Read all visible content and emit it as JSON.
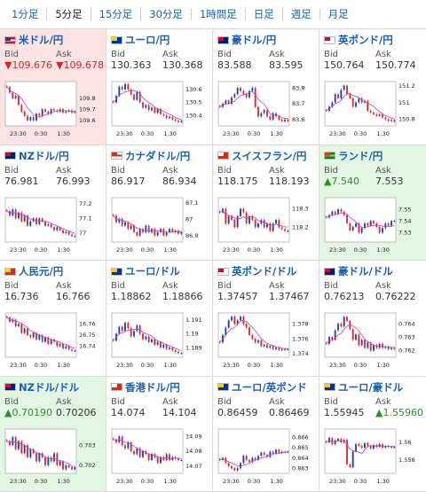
{
  "tabs": [
    {
      "label": "1分足"
    },
    {
      "label": "5分足"
    },
    {
      "label": "15分足"
    },
    {
      "label": "30分足"
    },
    {
      "label": "1時間足"
    },
    {
      "label": "日足"
    },
    {
      "label": "週足"
    },
    {
      "label": "月足"
    }
  ],
  "active_tab": "5分足",
  "labels": {
    "bid": "Bid",
    "ask": "Ask"
  },
  "colors": {
    "link": "#1a5fb4",
    "down": "#e0202a",
    "up": "#2c8f2c",
    "candle_up": "#1c3fb0",
    "candle_down": "#d62b2b",
    "ma": "#c03cc0"
  },
  "pairs": [
    {
      "name": "米ドル/円",
      "bid": "▼109.676",
      "ask": "▼109.678",
      "state": "down",
      "flag": "flag-us-icon",
      "chart_data": {
        "type": "candlestick",
        "ylim": [
          109.55,
          109.95
        ],
        "yticks": [
          109.8,
          109.7,
          109.6
        ],
        "xlabels": [
          "23:30",
          "0:30",
          "1:30"
        ],
        "close": [
          109.9,
          109.85,
          109.8,
          109.82,
          109.74,
          109.68,
          109.64,
          109.6,
          109.63,
          109.6,
          109.66,
          109.64,
          109.7,
          109.68,
          109.66,
          109.7,
          109.69,
          109.68,
          109.7,
          109.67,
          109.68,
          109.69,
          109.67,
          109.68
        ]
      }
    },
    {
      "name": "ユーロ/円",
      "bid": "130.363",
      "ask": "130.368",
      "state": "normal",
      "flag": "flag-eu-icon",
      "chart_data": {
        "type": "candlestick",
        "ylim": [
          130.32,
          130.66
        ],
        "yticks": [
          130.6,
          130.5,
          130.4
        ],
        "xlabels": [
          "23:30",
          "0:30",
          "1:30"
        ],
        "close": [
          130.5,
          130.55,
          130.62,
          130.6,
          130.64,
          130.6,
          130.56,
          130.52,
          130.58,
          130.5,
          130.46,
          130.48,
          130.44,
          130.46,
          130.42,
          130.45,
          130.41,
          130.4,
          130.38,
          130.39,
          130.37,
          130.36,
          130.35,
          130.36
        ]
      }
    },
    {
      "name": "豪ドル/円",
      "bid": "83.588",
      "ask": "83.595",
      "state": "normal",
      "flag": "flag-au-icon",
      "chart_data": {
        "type": "candlestick",
        "ylim": [
          83.56,
          83.84
        ],
        "yticks": [
          83.8,
          83.7,
          83.6
        ],
        "xlabels": [
          "23:30",
          "0:30",
          "1:30"
        ],
        "close": [
          83.68,
          83.7,
          83.72,
          83.7,
          83.74,
          83.76,
          83.8,
          83.78,
          83.76,
          83.74,
          83.78,
          83.8,
          83.68,
          83.62,
          83.64,
          83.66,
          83.62,
          83.6,
          83.64,
          83.62,
          83.6,
          83.59,
          83.6,
          83.59
        ]
      }
    },
    {
      "name": "英ポンド/円",
      "bid": "150.764",
      "ask": "150.774",
      "state": "normal",
      "flag": "flag-gb-icon",
      "chart_data": {
        "type": "candlestick",
        "ylim": [
          150.72,
          151.25
        ],
        "yticks": [
          151.2,
          151,
          150.8
        ],
        "xlabels": [
          "23:30",
          "0:30",
          "1:30"
        ],
        "close": [
          150.9,
          150.95,
          151.0,
          151.1,
          151.05,
          151.15,
          151.2,
          151.1,
          151.05,
          150.95,
          151.0,
          151.05,
          151.0,
          151.02,
          150.9,
          150.88,
          150.86,
          150.84,
          150.86,
          150.82,
          150.8,
          150.78,
          150.79,
          150.77
        ]
      }
    },
    {
      "name": "NZドル/円",
      "bid": "76.981",
      "ask": "76.993",
      "state": "normal",
      "flag": "flag-nz-icon",
      "chart_data": {
        "type": "candlestick",
        "ylim": [
          76.94,
          77.24
        ],
        "yticks": [
          77.2,
          77.1,
          77
        ],
        "xlabels": [
          "23:30",
          "0:30",
          "1:30"
        ],
        "close": [
          77.15,
          77.12,
          77.16,
          77.1,
          77.14,
          77.08,
          77.12,
          77.05,
          77.08,
          77.1,
          77.06,
          77.1,
          77.08,
          77.05,
          77.06,
          77.04,
          77.02,
          77.04,
          77.02,
          77.0,
          77.01,
          76.99,
          76.98,
          76.98
        ]
      }
    },
    {
      "name": "カナダドル/円",
      "bid": "86.917",
      "ask": "86.934",
      "state": "normal",
      "flag": "flag-ca-icon",
      "chart_data": {
        "type": "candlestick",
        "ylim": [
          86.86,
          87.13
        ],
        "yticks": [
          87.1,
          87,
          86.9
        ],
        "xlabels": [
          "23:30",
          "0:30",
          "1:30"
        ],
        "close": [
          87.02,
          86.98,
          87.0,
          86.96,
          86.98,
          86.94,
          86.96,
          86.92,
          86.9,
          86.94,
          86.92,
          86.96,
          86.92,
          86.94,
          86.9,
          86.92,
          86.94,
          86.9,
          86.92,
          86.94,
          86.92,
          86.93,
          86.91,
          86.92
        ]
      }
    },
    {
      "name": "スイスフラン/円",
      "bid": "118.175",
      "ask": "118.193",
      "state": "normal",
      "flag": "flag-ch-icon",
      "chart_data": {
        "type": "candlestick",
        "ylim": [
          118.12,
          118.36
        ],
        "yticks": [
          118.3,
          118.2
        ],
        "xlabels": [
          "23:30",
          "0:30",
          "1:30"
        ],
        "close": [
          118.28,
          118.3,
          118.22,
          118.26,
          118.24,
          118.2,
          118.26,
          118.3,
          118.28,
          118.22,
          118.26,
          118.24,
          118.2,
          118.22,
          118.24,
          118.2,
          118.22,
          118.18,
          118.22,
          118.24,
          118.2,
          118.19,
          118.18,
          118.18
        ]
      }
    },
    {
      "name": "ランド/円",
      "bid": "▲7.540",
      "ask": "7.553",
      "state": "up",
      "flag": "flag-za-icon",
      "chart_data": {
        "type": "candlestick",
        "ylim": [
          7.522,
          7.56
        ],
        "yticks": [
          7.55,
          7.54,
          7.53
        ],
        "xlabels": [
          "23:30",
          "0:30",
          "1:30"
        ],
        "close": [
          7.543,
          7.545,
          7.548,
          7.546,
          7.55,
          7.548,
          7.545,
          7.538,
          7.532,
          7.535,
          7.538,
          7.53,
          7.534,
          7.538,
          7.536,
          7.54,
          7.538,
          7.535,
          7.53,
          7.534,
          7.538,
          7.536,
          7.54,
          7.54
        ]
      }
    },
    {
      "name": "人民元/円",
      "bid": "16.736",
      "ask": "16.766",
      "state": "normal",
      "flag": "flag-cn-icon",
      "chart_data": {
        "type": "candlestick",
        "ylim": [
          16.73,
          16.77
        ],
        "yticks": [
          16.76,
          16.75,
          16.74
        ],
        "xlabels": [
          "23:30",
          "0:30",
          "1:30"
        ],
        "close": [
          16.766,
          16.762,
          16.764,
          16.758,
          16.76,
          16.752,
          16.756,
          16.75,
          16.748,
          16.752,
          16.746,
          16.75,
          16.744,
          16.748,
          16.742,
          16.746,
          16.744,
          16.74,
          16.742,
          16.738,
          16.74,
          16.737,
          16.736,
          16.736
        ]
      }
    },
    {
      "name": "ユーロ/ドル",
      "bid": "1.18862",
      "ask": "1.18866",
      "state": "normal",
      "flag": "flag-eu-icon",
      "chart_data": {
        "type": "candlestick",
        "ylim": [
          1.1883,
          1.1915
        ],
        "yticks": [
          1.191,
          1.19,
          1.189
        ],
        "xlabels": [
          "23:30",
          "0:30",
          "1:30"
        ],
        "close": [
          1.1895,
          1.19,
          1.1905,
          1.1902,
          1.1908,
          1.1904,
          1.1898,
          1.1902,
          1.1906,
          1.19,
          1.1896,
          1.1898,
          1.1894,
          1.1896,
          1.1892,
          1.1894,
          1.189,
          1.1892,
          1.1889,
          1.189,
          1.1888,
          1.1887,
          1.1886,
          1.1886
        ]
      }
    },
    {
      "name": "英ポンド/ドル",
      "bid": "1.37457",
      "ask": "1.37467",
      "state": "normal",
      "flag": "flag-gb-icon",
      "chart_data": {
        "type": "candlestick",
        "ylim": [
          1.3735,
          1.3795
        ],
        "yticks": [
          1.378,
          1.376,
          1.374
        ],
        "xlabels": [
          "23:30",
          "0:30",
          "1:30"
        ],
        "close": [
          1.3755,
          1.3765,
          1.3775,
          1.3785,
          1.379,
          1.378,
          1.3785,
          1.379,
          1.378,
          1.3775,
          1.3765,
          1.376,
          1.3755,
          1.3758,
          1.375,
          1.3752,
          1.3748,
          1.375,
          1.3746,
          1.3748,
          1.3745,
          1.3746,
          1.3745,
          1.3746
        ]
      }
    },
    {
      "name": "豪ドル/ドル",
      "bid": "0.76213",
      "ask": "0.76222",
      "state": "normal",
      "flag": "flag-au-icon",
      "chart_data": {
        "type": "candlestick",
        "ylim": [
          0.7615,
          0.7648
        ],
        "yticks": [
          0.764,
          0.763,
          0.762
        ],
        "xlabels": [
          "23:30",
          "0:30",
          "1:30"
        ],
        "close": [
          0.7625,
          0.763,
          0.7628,
          0.7635,
          0.764,
          0.7638,
          0.7645,
          0.7642,
          0.7636,
          0.7628,
          0.7632,
          0.7624,
          0.7628,
          0.7622,
          0.7626,
          0.762,
          0.7624,
          0.7622,
          0.7625,
          0.7622,
          0.7623,
          0.7621,
          0.7622,
          0.7621
        ]
      }
    },
    {
      "name": "NZドル/ドル",
      "bid": "▲0.70190",
      "ask": "0.70206",
      "state": "up",
      "flag": "flag-nz-icon",
      "chart_data": {
        "type": "candlestick",
        "ylim": [
          0.7016,
          0.7038
        ],
        "yticks": [
          0.703,
          0.702
        ],
        "xlabels": [
          "23:30",
          "0:30",
          "1:30"
        ],
        "close": [
          0.7032,
          0.703,
          0.7034,
          0.7028,
          0.7032,
          0.7026,
          0.703,
          0.7024,
          0.7028,
          0.7026,
          0.7022,
          0.7026,
          0.7024,
          0.702,
          0.7024,
          0.7022,
          0.7026,
          0.702,
          0.7022,
          0.7018,
          0.702,
          0.7019,
          0.7018,
          0.7019
        ]
      }
    },
    {
      "name": "香港ドル/円",
      "bid": "14.074",
      "ask": "14.104",
      "state": "normal",
      "flag": "flag-hk-icon",
      "chart_data": {
        "type": "candlestick",
        "ylim": [
          14.065,
          14.095
        ],
        "yticks": [
          14.09,
          14.08,
          14.07
        ],
        "xlabels": [
          "23:30",
          "0:30",
          "1:30"
        ],
        "close": [
          14.088,
          14.086,
          14.09,
          14.084,
          14.082,
          14.086,
          14.08,
          14.078,
          14.082,
          14.076,
          14.08,
          14.078,
          14.074,
          14.078,
          14.076,
          14.072,
          14.076,
          14.074,
          14.078,
          14.074,
          14.076,
          14.075,
          14.074,
          14.074
        ]
      }
    },
    {
      "name": "ユーロ/英ポンド",
      "bid": "0.86459",
      "ask": "0.86469",
      "state": "normal",
      "flag": "flag-eu-icon",
      "chart_data": {
        "type": "candlestick",
        "ylim": [
          0.8625,
          0.8668
        ],
        "yticks": [
          0.866,
          0.865,
          0.864,
          0.863
        ],
        "xlabels": [
          "23:30",
          "0:30",
          "1:30"
        ],
        "close": [
          0.8638,
          0.864,
          0.8635,
          0.8632,
          0.863,
          0.8628,
          0.863,
          0.8635,
          0.8642,
          0.8638,
          0.8636,
          0.864,
          0.8638,
          0.8642,
          0.8645,
          0.8643,
          0.8641,
          0.8646,
          0.8644,
          0.8648,
          0.8645,
          0.8646,
          0.8646,
          0.8646
        ]
      }
    },
    {
      "name": "ユーロ/豪ドル",
      "bid": "1.55945",
      "ask": "▲1.55960",
      "state": "normal",
      "flag": "flag-eu-icon",
      "chart_data": {
        "type": "candlestick",
        "ylim": [
          1.5565,
          1.5615
        ],
        "yticks": [
          1.56,
          1.558
        ],
        "xlabels": [
          "23:30",
          "0:30",
          "1:30"
        ],
        "close": [
          1.56,
          1.5605,
          1.5598,
          1.5602,
          1.5604,
          1.56,
          1.5603,
          1.5575,
          1.5572,
          1.559,
          1.5598,
          1.5596,
          1.5594,
          1.5599,
          1.5596,
          1.5593,
          1.5597,
          1.5595,
          1.5598,
          1.5594,
          1.5596,
          1.5595,
          1.5594,
          1.5595
        ]
      }
    }
  ]
}
